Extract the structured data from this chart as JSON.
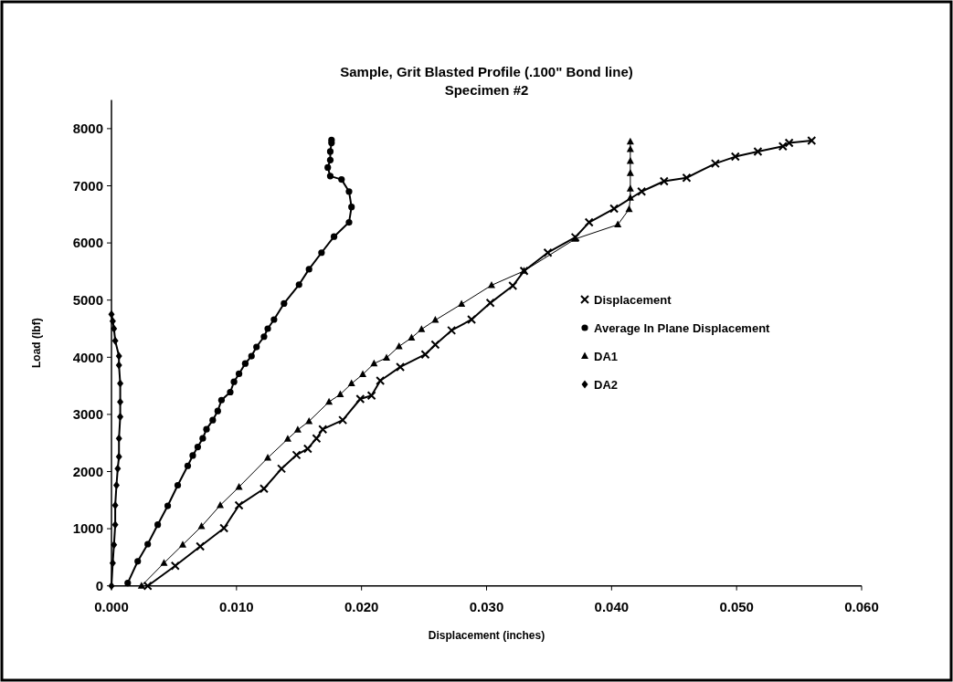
{
  "chart_data": {
    "type": "line",
    "title": "Sample, Grit Blasted Profile (.100\" Bond line)",
    "subtitle": "Specimen #2",
    "xlabel": "Displacement (inches)",
    "ylabel": "Load (lbf)",
    "xlim": [
      0,
      0.06
    ],
    "xticks": [
      {
        "value": 0,
        "label": "0.000"
      },
      {
        "value": 0.01,
        "label": "0.010"
      },
      {
        "value": 0.02,
        "label": "0.020"
      },
      {
        "value": 0.03,
        "label": "0.030"
      },
      {
        "value": 0.04,
        "label": "0.040"
      },
      {
        "value": 0.05,
        "label": "0.050"
      },
      {
        "value": 0.06,
        "label": "0.060"
      }
    ],
    "ylim": [
      0,
      8500
    ],
    "yticks": [
      0,
      1000,
      2000,
      3000,
      4000,
      5000,
      6000,
      7000,
      8000
    ],
    "grid": false,
    "legend": "right",
    "series": [
      {
        "name": "Displacement",
        "color": "#000000",
        "marker": "cross",
        "x": [
          0.0029,
          0.0051,
          0.0071,
          0.009,
          0.0102,
          0.0122,
          0.0136,
          0.0148,
          0.0157,
          0.0164,
          0.0169,
          0.0185,
          0.0199,
          0.0208,
          0.0215,
          0.0231,
          0.0251,
          0.0259,
          0.0272,
          0.0288,
          0.0303,
          0.0321,
          0.033,
          0.0349,
          0.0371,
          0.0382,
          0.0402,
          0.0424,
          0.0442,
          0.046,
          0.0483,
          0.0499,
          0.0517,
          0.0537,
          0.0542,
          0.056
        ],
        "values": [
          0,
          350,
          690,
          1010,
          1410,
          1700,
          2050,
          2290,
          2400,
          2580,
          2740,
          2900,
          3270,
          3330,
          3590,
          3830,
          4050,
          4220,
          4470,
          4660,
          4950,
          5250,
          5510,
          5830,
          6100,
          6360,
          6600,
          6900,
          7080,
          7140,
          7390,
          7510,
          7600,
          7690,
          7750,
          7790
        ]
      },
      {
        "name": "Average In Plane Displacement",
        "color": "#000000",
        "marker": "circle",
        "x": [
          0.0013,
          0.0021,
          0.0029,
          0.0037,
          0.0045,
          0.0053,
          0.0061,
          0.0065,
          0.0069,
          0.0073,
          0.0076,
          0.0081,
          0.0085,
          0.0088,
          0.0095,
          0.0098,
          0.0102,
          0.0107,
          0.0112,
          0.0116,
          0.0122,
          0.0125,
          0.013,
          0.0138,
          0.015,
          0.0158,
          0.0168,
          0.0178,
          0.019,
          0.0192,
          0.019,
          0.0184,
          0.0175,
          0.0173,
          0.0175,
          0.0175,
          0.0176,
          0.0176
        ],
        "values": [
          50,
          430,
          730,
          1070,
          1400,
          1760,
          2100,
          2280,
          2430,
          2580,
          2740,
          2900,
          3060,
          3250,
          3390,
          3570,
          3710,
          3890,
          4020,
          4180,
          4360,
          4500,
          4660,
          4940,
          5270,
          5540,
          5830,
          6110,
          6360,
          6630,
          6900,
          7110,
          7170,
          7320,
          7450,
          7600,
          7750,
          7800
        ]
      },
      {
        "name": "DA1",
        "color": "#000000",
        "marker": "triangle",
        "x": [
          0.0024,
          0.0042,
          0.0057,
          0.0072,
          0.0087,
          0.0102,
          0.0125,
          0.0141,
          0.0149,
          0.0158,
          0.0174,
          0.0183,
          0.0192,
          0.0201,
          0.021,
          0.022,
          0.023,
          0.024,
          0.0248,
          0.0259,
          0.028,
          0.0304,
          0.033,
          0.0371,
          0.0405,
          0.0414,
          0.0415,
          0.0415,
          0.0415,
          0.0415,
          0.0415,
          0.0415
        ],
        "values": [
          0,
          400,
          720,
          1040,
          1410,
          1730,
          2240,
          2570,
          2730,
          2880,
          3220,
          3350,
          3540,
          3700,
          3890,
          3990,
          4190,
          4340,
          4490,
          4650,
          4930,
          5260,
          5510,
          6070,
          6320,
          6590,
          6790,
          6950,
          7220,
          7430,
          7640,
          7770
        ]
      },
      {
        "name": "DA2",
        "color": "#000000",
        "marker": "diamond",
        "x": [
          0,
          0.0001,
          0.0002,
          0.0003,
          0.0003,
          0.0004,
          0.0005,
          0.0006,
          0.0006,
          0.0007,
          0.0007,
          0.0007,
          0.0006,
          0.0006,
          0.0003,
          0.0002,
          0.0001,
          0
        ],
        "values": [
          0,
          400,
          720,
          1070,
          1410,
          1760,
          2050,
          2260,
          2580,
          2960,
          3220,
          3540,
          3860,
          4020,
          4290,
          4500,
          4630,
          4750
        ]
      }
    ]
  }
}
